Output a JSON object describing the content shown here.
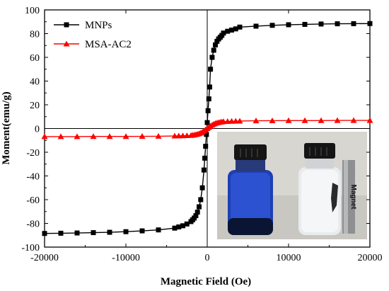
{
  "chart_data": {
    "type": "line",
    "title": "",
    "xlabel": "Magnetic Field (Oe)",
    "ylabel": "Moment(emu/g)",
    "xlim": [
      -20000,
      20000
    ],
    "ylim": [
      -100,
      100
    ],
    "xticks": [
      -20000,
      -10000,
      0,
      10000,
      20000
    ],
    "yticks": [
      -100,
      -80,
      -60,
      -40,
      -20,
      0,
      20,
      40,
      60,
      80,
      100
    ],
    "grid": false,
    "legend_position": "top-left",
    "series": [
      {
        "name": "MNPs",
        "color": "#000000",
        "marker": "square",
        "x": [
          -20000,
          -18000,
          -16000,
          -14000,
          -12000,
          -10000,
          -8000,
          -6000,
          -4000,
          -3500,
          -3000,
          -2500,
          -2000,
          -1800,
          -1600,
          -1400,
          -1200,
          -1000,
          -800,
          -600,
          -400,
          -300,
          -200,
          -100,
          0,
          100,
          200,
          300,
          400,
          600,
          800,
          1000,
          1200,
          1400,
          1600,
          1800,
          2000,
          2500,
          3000,
          3500,
          4000,
          6000,
          8000,
          10000,
          12000,
          14000,
          16000,
          18000,
          20000
        ],
        "y": [
          -88.5,
          -88.3,
          -88.1,
          -87.8,
          -87.5,
          -87,
          -86.3,
          -85.5,
          -84,
          -83,
          -82,
          -80.5,
          -78.5,
          -77,
          -75.5,
          -73.5,
          -70.5,
          -66,
          -60,
          -50,
          -35,
          -25,
          -15,
          -5,
          5,
          15,
          25,
          35,
          50,
          60,
          66,
          70.5,
          73.5,
          75.5,
          77,
          78.5,
          80.5,
          82,
          83,
          84,
          85.5,
          86.3,
          87,
          87.5,
          87.8,
          88.1,
          88.3,
          88.4,
          88.5
        ]
      },
      {
        "name": "MSA-AC2",
        "color": "#ff0000",
        "marker": "triangle",
        "x": [
          -20000,
          -18000,
          -16000,
          -14000,
          -12000,
          -10000,
          -8000,
          -6000,
          -4000,
          -3500,
          -3000,
          -2500,
          -2000,
          -1800,
          -1600,
          -1400,
          -1200,
          -1000,
          -800,
          -600,
          -400,
          -200,
          0,
          200,
          400,
          600,
          800,
          1000,
          1200,
          1400,
          1600,
          1800,
          2000,
          2500,
          3000,
          3500,
          4000,
          6000,
          8000,
          10000,
          12000,
          14000,
          16000,
          18000,
          20000
        ],
        "y": [
          -6.8,
          -6.8,
          -6.8,
          -6.7,
          -6.7,
          -6.7,
          -6.6,
          -6.5,
          -6.3,
          -6.2,
          -6.1,
          -6,
          -5.8,
          -5.6,
          -5.4,
          -5.1,
          -4.8,
          -4.3,
          -3.7,
          -3,
          -2,
          -1,
          0,
          1,
          2,
          3,
          3.7,
          4.3,
          4.8,
          5.1,
          5.4,
          5.6,
          5.8,
          6,
          6.1,
          6.2,
          6.3,
          6.5,
          6.6,
          6.7,
          6.7,
          6.7,
          6.8,
          6.8,
          6.8
        ]
      }
    ],
    "inset": {
      "description": "photo",
      "magnet_label": "Magnet"
    }
  }
}
